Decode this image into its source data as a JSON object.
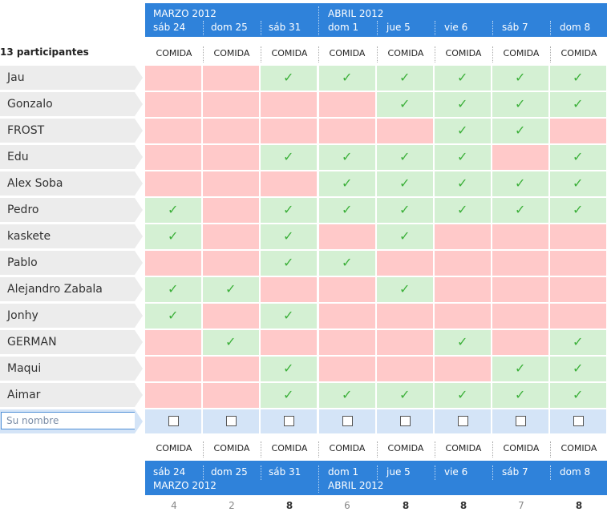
{
  "header": {
    "months": [
      "MARZO 2012",
      "ABRIL 2012"
    ],
    "days": [
      "sáb 24",
      "dom 25",
      "sáb 31",
      "dom 1",
      "jue 5",
      "vie 6",
      "sáb 7",
      "dom 8"
    ],
    "meal": "COMIDA"
  },
  "participants_count": "13 participantes",
  "rows": [
    {
      "name": "Jau",
      "votes": [
        0,
        0,
        1,
        1,
        1,
        1,
        1,
        1
      ]
    },
    {
      "name": "Gonzalo",
      "votes": [
        0,
        0,
        0,
        0,
        1,
        1,
        1,
        1
      ]
    },
    {
      "name": "FROST",
      "votes": [
        0,
        0,
        0,
        0,
        0,
        1,
        1,
        0
      ]
    },
    {
      "name": "Edu",
      "votes": [
        0,
        0,
        1,
        1,
        1,
        1,
        0,
        1
      ]
    },
    {
      "name": "Alex Soba",
      "votes": [
        0,
        0,
        0,
        1,
        1,
        1,
        1,
        1
      ]
    },
    {
      "name": "Pedro",
      "votes": [
        1,
        0,
        1,
        1,
        1,
        1,
        1,
        1
      ]
    },
    {
      "name": "kaskete",
      "votes": [
        1,
        0,
        1,
        0,
        1,
        0,
        0,
        0
      ]
    },
    {
      "name": "Pablo",
      "votes": [
        0,
        0,
        1,
        1,
        0,
        0,
        0,
        0
      ]
    },
    {
      "name": "Alejandro Zabala",
      "votes": [
        1,
        1,
        0,
        0,
        1,
        0,
        0,
        0
      ]
    },
    {
      "name": "Jonhy",
      "votes": [
        1,
        0,
        1,
        0,
        0,
        0,
        0,
        0
      ]
    },
    {
      "name": "GERMAN",
      "votes": [
        0,
        1,
        0,
        0,
        0,
        1,
        0,
        1
      ]
    },
    {
      "name": "Maqui",
      "votes": [
        0,
        0,
        1,
        0,
        0,
        0,
        1,
        1
      ]
    },
    {
      "name": "Aimar",
      "votes": [
        0,
        0,
        1,
        1,
        1,
        1,
        1,
        1
      ]
    }
  ],
  "input": {
    "placeholder": "Su nombre"
  },
  "footer": {
    "days": [
      "sáb 24",
      "dom 25",
      "sáb 31",
      "dom 1",
      "jue 5",
      "vie 6",
      "sáb 7",
      "dom 8"
    ],
    "months": [
      "MARZO 2012",
      "ABRIL 2012"
    ]
  },
  "totals": [
    "4",
    "2",
    "8",
    "6",
    "8",
    "8",
    "7",
    "8"
  ],
  "colors": {
    "header": "#2f82da",
    "yes": "#d4f0d3",
    "no": "#ffc9c9",
    "check": "#3cb03a",
    "entry": "#d4e4f7"
  }
}
